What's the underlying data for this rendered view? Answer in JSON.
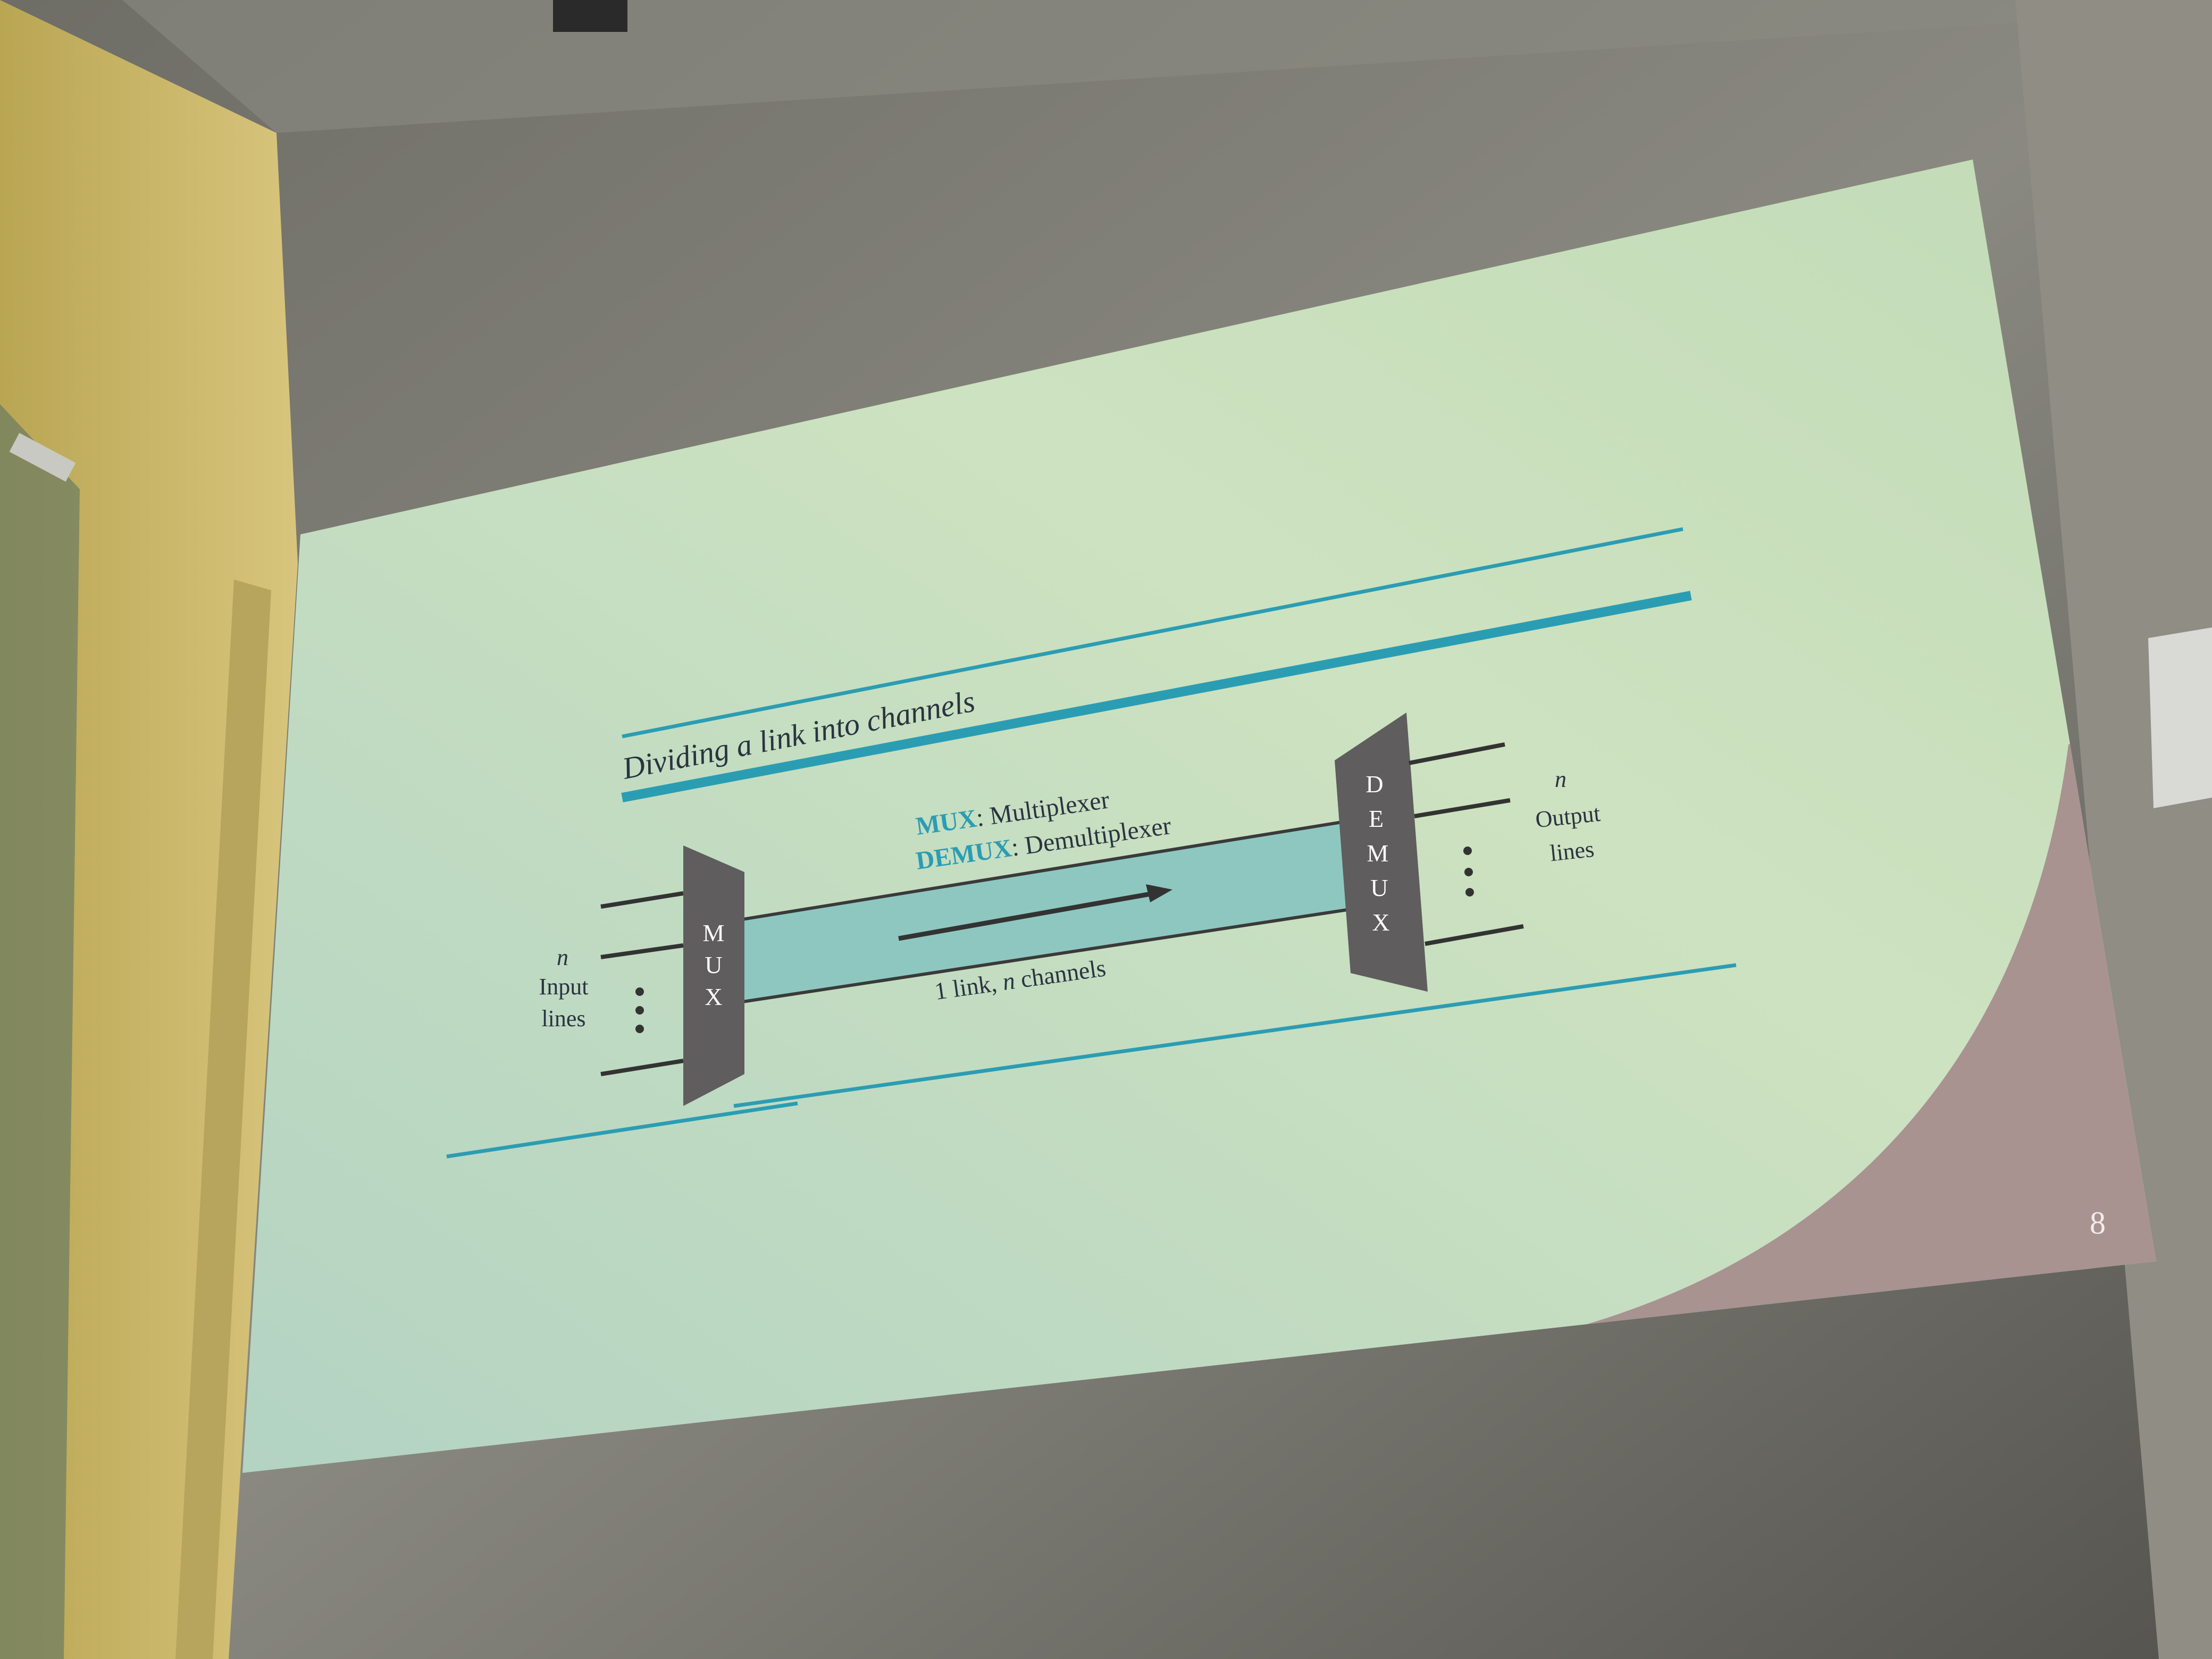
{
  "scene": {
    "description_colors": {
      "wall": "#7d7b73",
      "left_wall": "#c9b569",
      "slide_background": "#c7ddbf",
      "slide_corner": "#a89391",
      "accent_teal": "#2b9db3",
      "device_gray": "#5f5d5e",
      "channel_fill": "#8ec7c0"
    }
  },
  "slide": {
    "title": "Dividing a link into channels",
    "mux_abbrev": "MUX",
    "mux_rest": ": Multiplexer",
    "demux_abbrev": "DEMUX",
    "demux_rest": ": Demultiplexer",
    "mux_box_letters": [
      "M",
      "U",
      "X"
    ],
    "demux_box_letters": [
      "D",
      "E",
      "M",
      "U",
      "X"
    ],
    "input_n": "n",
    "input_label_1": "Input",
    "input_label_2": "lines",
    "output_n": "n",
    "output_label_1": "Output",
    "output_label_2": "lines",
    "link_label_1": "1 link, ",
    "link_label_n": "n",
    "link_label_2": " channels",
    "page_number": "8"
  }
}
